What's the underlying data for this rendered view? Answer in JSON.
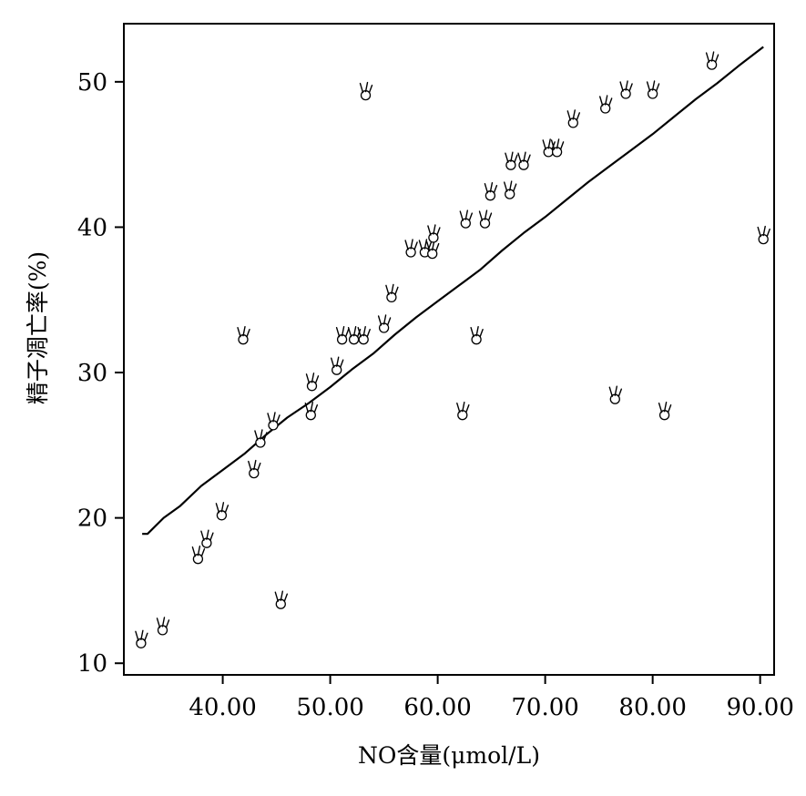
{
  "chart_data": {
    "type": "scatter",
    "title": "",
    "xlabel": "NO含量(μmol/L)",
    "ylabel": "精子凋亡率(%)",
    "xlim": [
      30.8,
      91.3
    ],
    "ylim": [
      9.2,
      54
    ],
    "x_ticks": [
      40,
      50,
      60,
      70,
      80,
      90
    ],
    "x_tick_labels": [
      "40.00",
      "50.00",
      "60.00",
      "70.00",
      "80.00",
      "90.00"
    ],
    "y_ticks": [
      10,
      20,
      30,
      40,
      50
    ],
    "y_tick_labels": [
      "10",
      "20",
      "30",
      "40",
      "50"
    ],
    "grid": false,
    "marker_glyph": "✌",
    "series": [
      {
        "type": "scatter",
        "points": [
          {
            "x": 32.4,
            "y": 11.5
          },
          {
            "x": 34.4,
            "y": 12.4
          },
          {
            "x": 37.7,
            "y": 17.3
          },
          {
            "x": 38.5,
            "y": 18.4
          },
          {
            "x": 39.9,
            "y": 20.3
          },
          {
            "x": 41.9,
            "y": 32.4
          },
          {
            "x": 42.9,
            "y": 23.2
          },
          {
            "x": 43.5,
            "y": 25.3
          },
          {
            "x": 44.7,
            "y": 26.5
          },
          {
            "x": 45.4,
            "y": 14.2
          },
          {
            "x": 48.2,
            "y": 27.2
          },
          {
            "x": 48.3,
            "y": 29.2
          },
          {
            "x": 50.6,
            "y": 30.3
          },
          {
            "x": 51.1,
            "y": 32.4
          },
          {
            "x": 52.2,
            "y": 32.4
          },
          {
            "x": 53.1,
            "y": 32.4
          },
          {
            "x": 53.3,
            "y": 49.2
          },
          {
            "x": 55.0,
            "y": 33.2
          },
          {
            "x": 55.7,
            "y": 35.3
          },
          {
            "x": 57.5,
            "y": 38.4
          },
          {
            "x": 58.8,
            "y": 38.4
          },
          {
            "x": 59.5,
            "y": 38.3
          },
          {
            "x": 59.6,
            "y": 39.4
          },
          {
            "x": 62.3,
            "y": 27.2
          },
          {
            "x": 62.6,
            "y": 40.4
          },
          {
            "x": 63.6,
            "y": 32.4
          },
          {
            "x": 64.4,
            "y": 40.4
          },
          {
            "x": 64.9,
            "y": 42.3
          },
          {
            "x": 66.7,
            "y": 42.4
          },
          {
            "x": 66.8,
            "y": 44.4
          },
          {
            "x": 68.0,
            "y": 44.4
          },
          {
            "x": 70.3,
            "y": 45.3
          },
          {
            "x": 71.1,
            "y": 45.3
          },
          {
            "x": 72.6,
            "y": 47.3
          },
          {
            "x": 75.6,
            "y": 48.3
          },
          {
            "x": 76.5,
            "y": 28.3
          },
          {
            "x": 77.5,
            "y": 49.3
          },
          {
            "x": 80.0,
            "y": 49.3
          },
          {
            "x": 81.1,
            "y": 27.2
          },
          {
            "x": 85.5,
            "y": 51.3
          },
          {
            "x": 90.3,
            "y": 39.3
          }
        ]
      },
      {
        "type": "line",
        "points": [
          {
            "x": 32.5,
            "y": 18.9
          },
          {
            "x": 33.0,
            "y": 18.9
          },
          {
            "x": 34.5,
            "y": 20.0
          },
          {
            "x": 36.0,
            "y": 20.8
          },
          {
            "x": 38.0,
            "y": 22.2
          },
          {
            "x": 40.0,
            "y": 23.3
          },
          {
            "x": 42.0,
            "y": 24.4
          },
          {
            "x": 44.0,
            "y": 25.7
          },
          {
            "x": 46.0,
            "y": 26.9
          },
          {
            "x": 48.0,
            "y": 27.9
          },
          {
            "x": 50.0,
            "y": 29.0
          },
          {
            "x": 52.0,
            "y": 30.2
          },
          {
            "x": 54.0,
            "y": 31.3
          },
          {
            "x": 56.0,
            "y": 32.6
          },
          {
            "x": 58.0,
            "y": 33.8
          },
          {
            "x": 60.0,
            "y": 34.9
          },
          {
            "x": 62.0,
            "y": 36.0
          },
          {
            "x": 64.0,
            "y": 37.1
          },
          {
            "x": 66.0,
            "y": 38.4
          },
          {
            "x": 68.0,
            "y": 39.6
          },
          {
            "x": 70.0,
            "y": 40.7
          },
          {
            "x": 72.0,
            "y": 41.9
          },
          {
            "x": 74.0,
            "y": 43.1
          },
          {
            "x": 76.0,
            "y": 44.2
          },
          {
            "x": 78.0,
            "y": 45.3
          },
          {
            "x": 80.0,
            "y": 46.4
          },
          {
            "x": 82.0,
            "y": 47.6
          },
          {
            "x": 84.0,
            "y": 48.8
          },
          {
            "x": 86.0,
            "y": 49.9
          },
          {
            "x": 88.0,
            "y": 51.1
          },
          {
            "x": 90.3,
            "y": 52.4
          }
        ]
      }
    ]
  }
}
